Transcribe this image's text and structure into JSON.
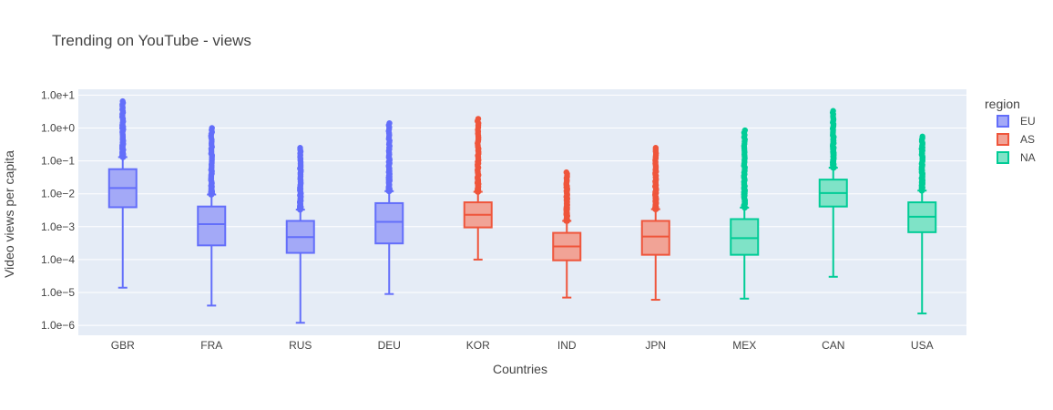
{
  "chart_data": {
    "type": "box",
    "title": "Trending on YouTube - views",
    "xlabel": "Countries",
    "ylabel": "Video views per capita",
    "y_scale": "log",
    "ylim": [
      5e-07,
      15
    ],
    "y_ticks": [
      {
        "value": 10,
        "label": "1.0e+1"
      },
      {
        "value": 1,
        "label": "1.0e+0"
      },
      {
        "value": 0.1,
        "label": "1.0e−1"
      },
      {
        "value": 0.01,
        "label": "1.0e−2"
      },
      {
        "value": 0.001,
        "label": "1.0e−3"
      },
      {
        "value": 0.0001,
        "label": "1.0e−4"
      },
      {
        "value": 1e-05,
        "label": "1.0e−5"
      },
      {
        "value": 1e-06,
        "label": "1.0e−6"
      }
    ],
    "categories": [
      "GBR",
      "FRA",
      "RUS",
      "DEU",
      "KOR",
      "IND",
      "JPN",
      "MEX",
      "CAN",
      "USA"
    ],
    "legend_title": "region",
    "legend_position": "right",
    "series": [
      {
        "name": "EU",
        "color": "#636efa",
        "fill": "#a3a9f7",
        "boxes": [
          {
            "category": "GBR",
            "min": 1.4e-05,
            "q1": 0.0039,
            "median": 0.015,
            "q3": 0.056,
            "upper_fence": 0.13,
            "max_outlier": 6.5
          },
          {
            "category": "FRA",
            "min": 4e-06,
            "q1": 0.00027,
            "median": 0.0012,
            "q3": 0.0041,
            "upper_fence": 0.0095,
            "max_outlier": 1.0
          },
          {
            "category": "RUS",
            "min": 1.2e-06,
            "q1": 0.00016,
            "median": 0.00048,
            "q3": 0.0015,
            "upper_fence": 0.0033,
            "max_outlier": 0.25
          },
          {
            "category": "DEU",
            "min": 9e-06,
            "q1": 0.00031,
            "median": 0.0014,
            "q3": 0.0052,
            "upper_fence": 0.012,
            "max_outlier": 1.4
          }
        ]
      },
      {
        "name": "AS",
        "color": "#ef553b",
        "fill": "#f1a396",
        "boxes": [
          {
            "category": "KOR",
            "min": 0.0001,
            "q1": 0.00095,
            "median": 0.0023,
            "q3": 0.0055,
            "upper_fence": 0.0115,
            "max_outlier": 1.9
          },
          {
            "category": "IND",
            "min": 7e-06,
            "q1": 9.5e-05,
            "median": 0.00025,
            "q3": 0.00065,
            "upper_fence": 0.0015,
            "max_outlier": 0.045
          },
          {
            "category": "JPN",
            "min": 6e-06,
            "q1": 0.00014,
            "median": 0.0005,
            "q3": 0.0015,
            "upper_fence": 0.0034,
            "max_outlier": 0.25
          }
        ]
      },
      {
        "name": "NA",
        "color": "#00cc96",
        "fill": "#7fe3c7",
        "boxes": [
          {
            "category": "MEX",
            "min": 6.5e-06,
            "q1": 0.00014,
            "median": 0.00045,
            "q3": 0.0017,
            "upper_fence": 0.0038,
            "max_outlier": 0.85
          },
          {
            "category": "CAN",
            "min": 3e-05,
            "q1": 0.0041,
            "median": 0.0105,
            "q3": 0.027,
            "upper_fence": 0.062,
            "max_outlier": 3.3
          },
          {
            "category": "USA",
            "min": 2.3e-06,
            "q1": 0.00068,
            "median": 0.002,
            "q3": 0.0055,
            "upper_fence": 0.0125,
            "max_outlier": 0.55
          }
        ]
      }
    ]
  }
}
